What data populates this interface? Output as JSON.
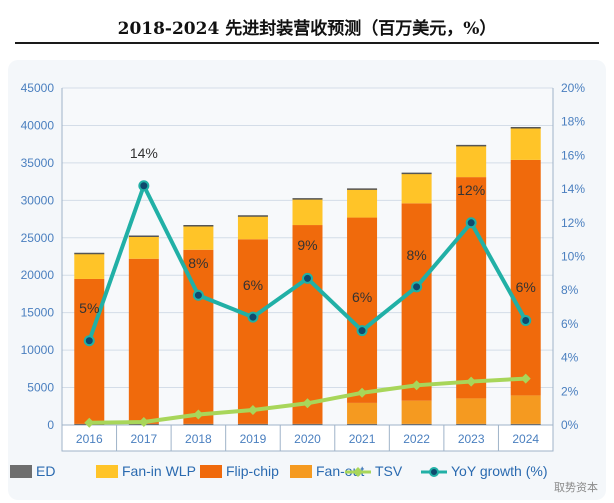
{
  "chart_data": {
    "type": "bar",
    "title": "2018-2024 先进封装营收预测（百万美元，%）",
    "categories": [
      "2016",
      "2017",
      "2018",
      "2019",
      "2020",
      "2021",
      "2022",
      "2023",
      "2024"
    ],
    "stacked": true,
    "ylim": [
      0,
      45000
    ],
    "y_ticks": [
      "0",
      "5000",
      "10000",
      "15000",
      "20000",
      "25000",
      "30000",
      "35000",
      "40000",
      "45000"
    ],
    "y2lim": [
      0,
      20
    ],
    "y2_ticks": [
      "0%",
      "2%",
      "4%",
      "6%",
      "8%",
      "10%",
      "12%",
      "14%",
      "16%",
      "18%",
      "20%"
    ],
    "series": [
      {
        "name": "ED",
        "kind": "bar",
        "color": "#6e6e6e",
        "values": [
          150,
          150,
          150,
          150,
          150,
          150,
          150,
          150,
          150
        ]
      },
      {
        "name": "Fan-out",
        "kind": "bar",
        "color": "#f59a20",
        "values": [
          0,
          0,
          0,
          0,
          0,
          2800,
          3100,
          3400,
          3800
        ]
      },
      {
        "name": "Flip-chip",
        "kind": "bar",
        "color": "#f06a0c",
        "values": [
          19350,
          22050,
          23250,
          24650,
          26550,
          24750,
          26350,
          29550,
          31450
        ]
      },
      {
        "name": "Fan-in WLP",
        "kind": "bar",
        "color": "#ffc428",
        "values": [
          3400,
          3000,
          3200,
          3100,
          3500,
          3800,
          4000,
          4200,
          4300
        ]
      },
      {
        "name": "TSV",
        "kind": "line",
        "color": "#a8d65a",
        "values": [
          300,
          400,
          1400,
          2000,
          2900,
          4300,
          5300,
          5800,
          6200
        ]
      },
      {
        "name": "YoY growth (%)",
        "kind": "line",
        "axis": "right",
        "color": "#21b0a6",
        "values": [
          5,
          14.2,
          7.7,
          6.4,
          8.7,
          5.6,
          8.2,
          12,
          6.2
        ]
      }
    ],
    "annotations": [
      "5%",
      "14%",
      "8%",
      "6%",
      "9%",
      "6%",
      "8%",
      "12%",
      "6%"
    ],
    "legend": [
      "ED",
      "Fan-in WLP",
      "Flip-chip",
      "Fan-out",
      "TSV",
      "YoY growth (%)"
    ]
  },
  "watermark": "取势资本"
}
